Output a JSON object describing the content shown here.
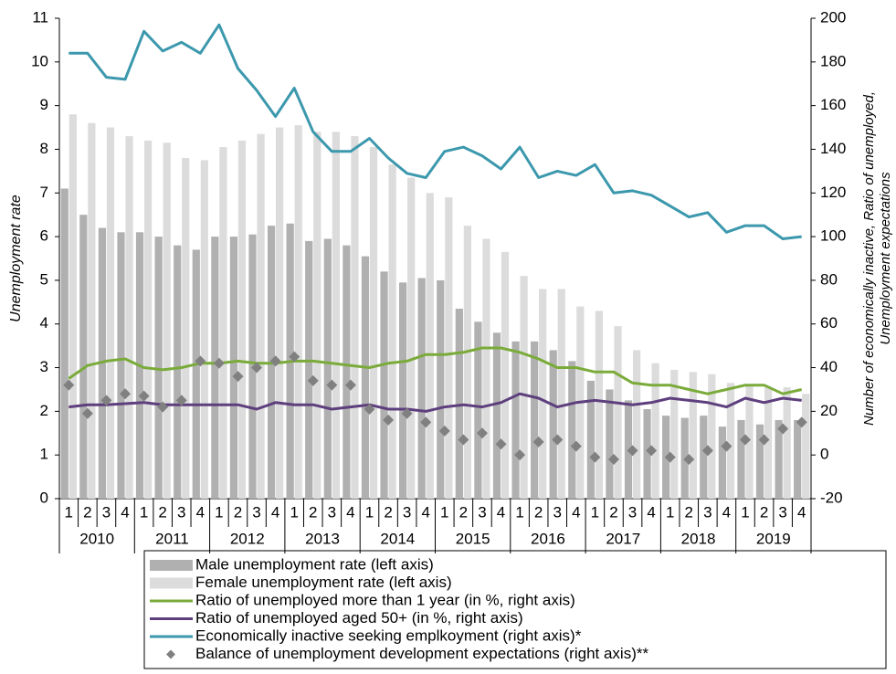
{
  "chart_data": {
    "type": "combo",
    "y_label": "Unemployment rate",
    "y2_label": [
      "Number of economically inactive, Ratio of unemployed,",
      "Unemployment expectations"
    ],
    "categories": [
      "1",
      "2",
      "3",
      "4",
      "1",
      "2",
      "3",
      "4",
      "1",
      "2",
      "3",
      "4",
      "1",
      "2",
      "3",
      "4",
      "1",
      "2",
      "3",
      "4",
      "1",
      "2",
      "3",
      "4",
      "1",
      "2",
      "3",
      "4",
      "1",
      "2",
      "3",
      "4",
      "1",
      "2",
      "3",
      "4",
      "1",
      "2",
      "3",
      "4"
    ],
    "years": [
      "2010",
      "2011",
      "2012",
      "2013",
      "2014",
      "2015",
      "2016",
      "2017",
      "2018",
      "2019"
    ],
    "ylim": [
      0,
      11
    ],
    "yticks": [
      0,
      1,
      2,
      3,
      4,
      5,
      6,
      7,
      8,
      9,
      10,
      11
    ],
    "y2lim": [
      -20,
      200
    ],
    "y2ticks": [
      -20,
      0,
      20,
      40,
      60,
      80,
      100,
      120,
      140,
      160,
      180,
      200
    ],
    "grid": false,
    "series": [
      {
        "name": "Male unemployment rate (left axis)",
        "type": "bar",
        "color": "#b0b0b0",
        "values": [
          7.1,
          6.5,
          6.2,
          6.1,
          6.1,
          6.0,
          5.8,
          5.7,
          6.0,
          6.0,
          6.05,
          6.25,
          6.3,
          5.9,
          5.95,
          5.8,
          5.55,
          5.2,
          4.95,
          5.05,
          5.0,
          4.35,
          4.05,
          3.8,
          3.6,
          3.6,
          3.4,
          3.15,
          2.7,
          2.5,
          2.25,
          2.05,
          1.9,
          1.85,
          1.9,
          1.65,
          1.8,
          1.7,
          1.8,
          1.8
        ]
      },
      {
        "name": "Female unemployment rate (left axis)",
        "type": "bar",
        "color": "#dcdcdc",
        "values": [
          8.8,
          8.6,
          8.5,
          8.3,
          8.2,
          8.15,
          7.8,
          7.75,
          8.05,
          8.2,
          8.35,
          8.5,
          8.55,
          8.4,
          8.4,
          8.3,
          8.05,
          7.65,
          7.35,
          7.0,
          6.9,
          6.25,
          5.95,
          5.65,
          5.1,
          4.8,
          4.8,
          4.4,
          4.3,
          3.95,
          3.4,
          3.1,
          2.95,
          2.9,
          2.85,
          2.65,
          2.6,
          2.55,
          2.55,
          2.4
        ]
      },
      {
        "name": "Ratio of unemployed more than 1 year (in %, right axis)",
        "type": "line",
        "axis": "y2",
        "color": "#7aab3a",
        "values": [
          35,
          41,
          43,
          44,
          40,
          39,
          40,
          42,
          42,
          43,
          42,
          42,
          43,
          43,
          42,
          41,
          40,
          42,
          43,
          46,
          46,
          47,
          49,
          49,
          47,
          44,
          40,
          40,
          38,
          38,
          33,
          32,
          32,
          30,
          28,
          30,
          32,
          32,
          28,
          30
        ]
      },
      {
        "name": "Ratio of unemployed aged 50+ (in %, right axis)",
        "type": "line",
        "axis": "y2",
        "color": "#5e3f7e",
        "values": [
          22,
          23,
          23,
          23.5,
          24,
          23,
          23,
          23,
          23,
          23,
          21,
          24,
          23,
          23,
          21,
          22,
          23,
          21,
          21,
          20,
          22,
          23,
          22,
          24,
          28,
          26,
          22,
          24,
          25,
          24,
          23,
          24,
          26,
          25,
          24,
          22,
          26,
          24,
          26,
          25
        ]
      },
      {
        "name": "Economically inactive seeking emplkoyment (right axis)*",
        "type": "line",
        "axis": "y2",
        "color": "#3c98ad",
        "values": [
          184,
          184,
          173,
          172,
          194,
          185,
          189,
          184,
          197,
          177,
          167,
          155,
          168,
          148,
          139,
          139,
          145,
          136,
          129,
          127,
          139,
          141,
          137,
          131,
          141,
          127,
          130,
          128,
          133,
          120,
          121,
          119,
          114,
          109,
          111,
          102,
          105,
          105,
          99,
          100
        ]
      },
      {
        "name": "Balance of unemployment development expectations (right axis)**",
        "type": "scatter",
        "axis": "y2",
        "color": "#808080",
        "values": [
          32,
          19,
          25,
          28,
          27,
          22,
          25,
          43,
          42,
          36,
          40,
          43,
          45,
          34,
          32,
          32,
          21,
          16,
          19,
          15,
          11,
          7,
          10,
          5,
          0,
          6,
          7,
          4,
          -1,
          -2,
          2,
          2,
          -1,
          -2,
          2,
          4,
          7,
          7,
          12,
          15
        ]
      }
    ]
  }
}
